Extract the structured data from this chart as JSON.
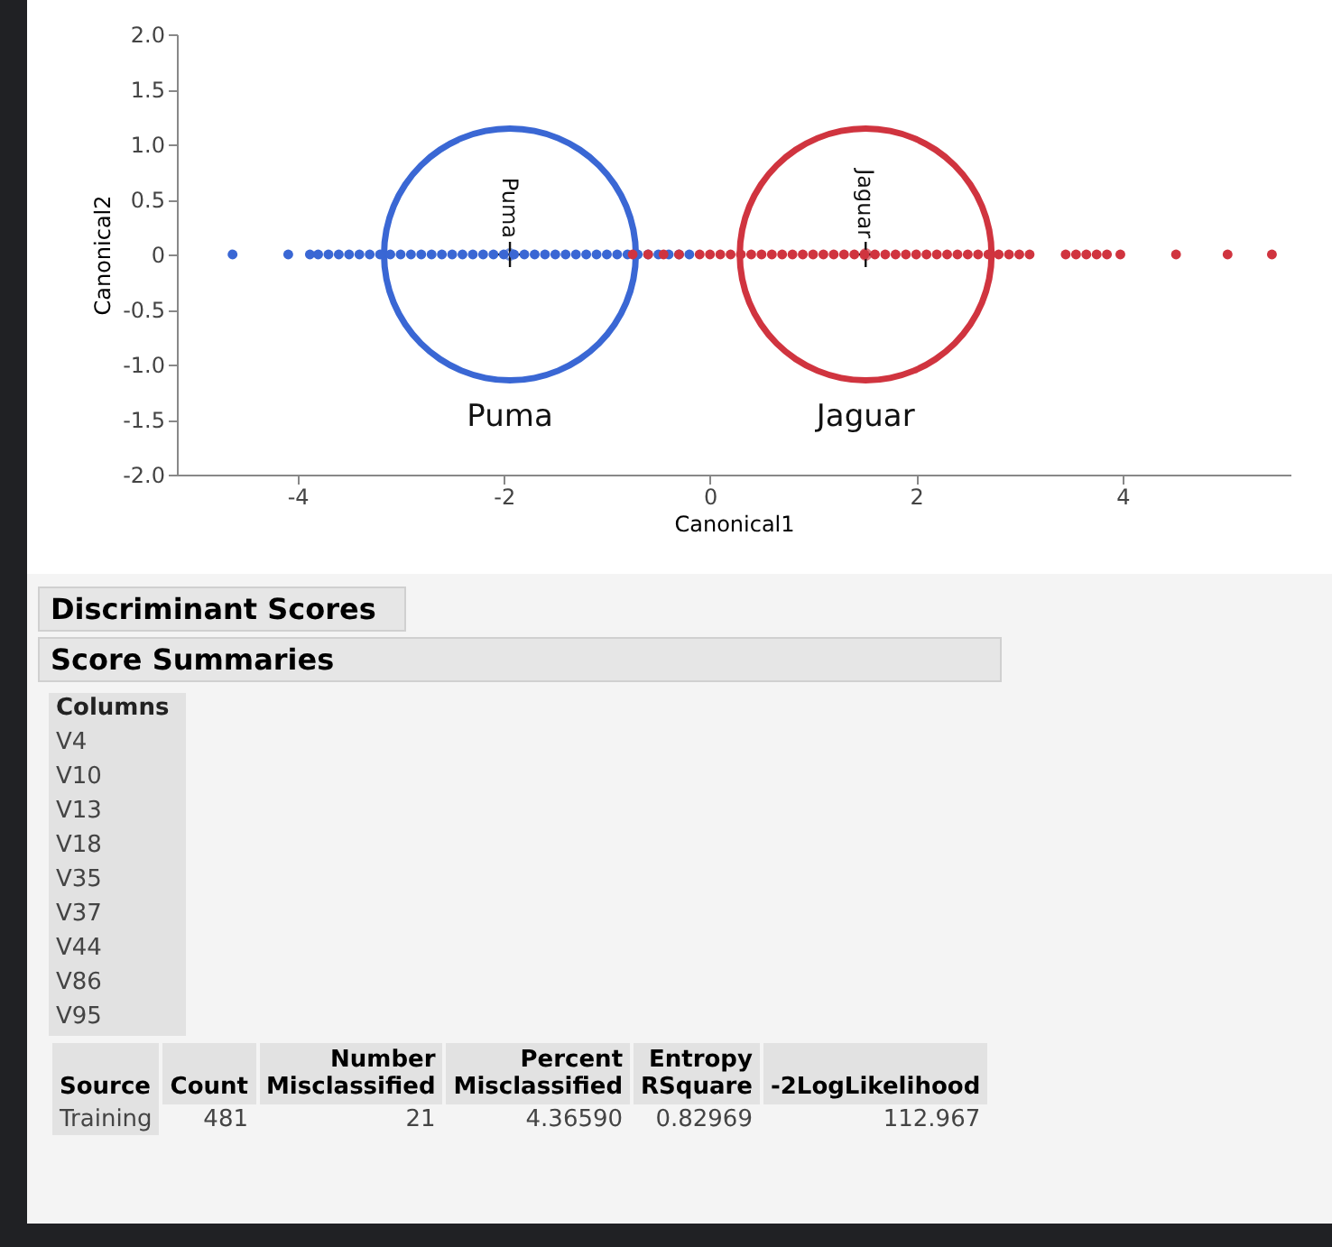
{
  "chart_data": {
    "type": "scatter",
    "xlabel": "Canonical1",
    "ylabel": "Canonical2",
    "xlim": [
      -5.17,
      5.63
    ],
    "xticks": [
      -4,
      -2,
      0,
      2,
      4
    ],
    "ylim": [
      -2,
      2
    ],
    "yticks": [
      {
        "value": -2,
        "label": "-2.0"
      },
      {
        "value": -1.5,
        "label": "-1.5"
      },
      {
        "value": -1,
        "label": "-1.0"
      },
      {
        "value": -0.5,
        "label": "-0.5"
      },
      0,
      {
        "value": 0.5,
        "label": "0.5"
      },
      {
        "value": 1,
        "label": "1.0"
      },
      {
        "value": 1.5,
        "label": "1.5"
      },
      {
        "value": 2,
        "label": "2.0"
      }
    ],
    "marker": "circle",
    "grid": false,
    "series": [
      {
        "color": "#3a67d4",
        "x": [
          -4.63,
          -4.09,
          -3.88,
          -3.8,
          -3.7,
          -3.6,
          -3.5,
          -3.4,
          -3.3,
          -3.2,
          -3.1,
          -3.0,
          -2.9,
          -2.8,
          -2.7,
          -2.6,
          -2.5,
          -2.4,
          -2.3,
          -2.2,
          -2.1,
          -2.0,
          -1.9,
          -1.8,
          -1.7,
          -1.6,
          -1.5,
          -1.4,
          -1.3,
          -1.2,
          -1.1,
          -1.0,
          -0.9,
          -0.8,
          -0.7,
          -0.6,
          -0.5,
          -0.4,
          -0.3,
          -0.2
        ],
        "values": [
          0,
          0,
          0,
          0,
          0,
          0,
          0,
          0,
          0,
          0,
          0,
          0,
          0,
          0,
          0,
          0,
          0,
          0,
          0,
          0,
          0,
          0,
          0,
          0,
          0,
          0,
          0,
          0,
          0,
          0,
          0,
          0,
          0,
          0,
          0,
          0,
          0,
          0,
          0,
          0
        ]
      },
      {
        "color": "#d0343f",
        "x": [
          -0.75,
          -0.6,
          -0.45,
          -0.3,
          -0.1,
          0,
          0.1,
          0.2,
          0.3,
          0.4,
          0.5,
          0.6,
          0.7,
          0.8,
          0.9,
          1.0,
          1.1,
          1.2,
          1.3,
          1.4,
          1.5,
          1.6,
          1.7,
          1.8,
          1.9,
          2.0,
          2.1,
          2.2,
          2.3,
          2.4,
          2.5,
          2.6,
          2.7,
          2.8,
          2.9,
          3.0,
          3.1,
          3.45,
          3.55,
          3.65,
          3.75,
          3.85,
          3.98,
          4.52,
          5.02,
          5.45
        ],
        "values": [
          0,
          0,
          0,
          0,
          0,
          0,
          0,
          0,
          0,
          0,
          0,
          0,
          0,
          0,
          0,
          0,
          0,
          0,
          0,
          0,
          0,
          0,
          0,
          0,
          0,
          0,
          0,
          0,
          0,
          0,
          0,
          0,
          0,
          0,
          0,
          0,
          0,
          0,
          0,
          0,
          0,
          0,
          0,
          0,
          0,
          0
        ]
      },
      {
        "marker": "circle",
        "colors": [
          "#3a67d4",
          "#d0343f"
        ],
        "x": [
          -1.94,
          1.51
        ],
        "values": [
          0,
          0
        ]
      }
    ],
    "annotations": [
      "Puma",
      "Jaguar",
      "Puma",
      "Jaguar",
      "Discriminant Scores",
      "Score Summaries",
      "Columns",
      "V4",
      "V10",
      "V13",
      "V18",
      "V35",
      "V37",
      "V44",
      "V86",
      "V95",
      "Source",
      "Count",
      "Number Misclassified",
      "Percent Misclassified",
      "Entropy RSquare",
      "-2LogLikelihood",
      "Training",
      "481",
      "21",
      "4.36590",
      "0.82969",
      "112.967"
    ]
  }
}
